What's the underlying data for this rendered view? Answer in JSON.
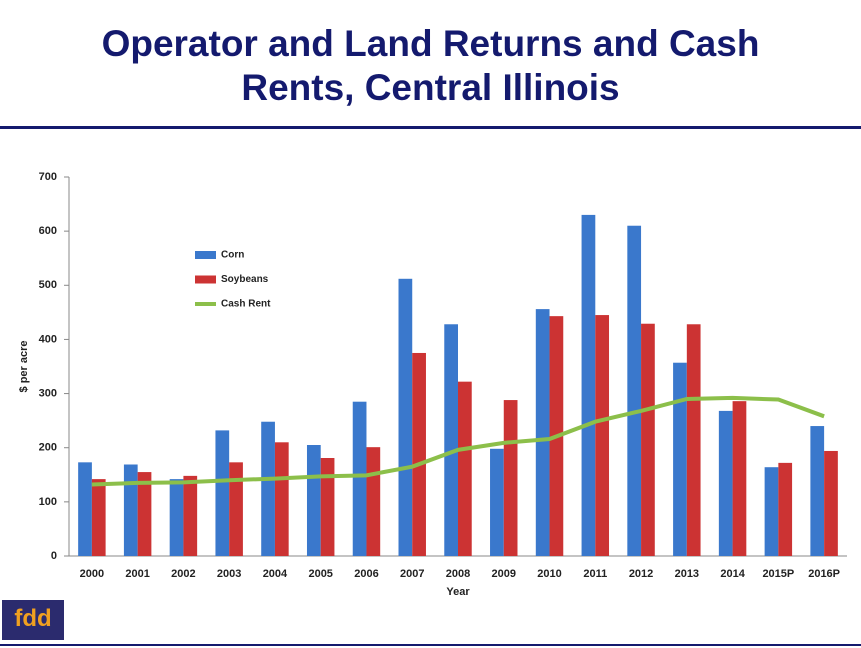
{
  "chart_data": {
    "type": "bar",
    "title": "Operator and Land Returns and Cash Rents, Central Illinois",
    "categories": [
      "2000",
      "2001",
      "2002",
      "2003",
      "2004",
      "2005",
      "2006",
      "2007",
      "2008",
      "2009",
      "2010",
      "2011",
      "2012",
      "2013",
      "2014",
      "2015P",
      "2016P"
    ],
    "series": [
      {
        "name": "Corn",
        "type": "bar",
        "color": "#3a78cc",
        "values": [
          173,
          169,
          142,
          232,
          248,
          205,
          285,
          512,
          428,
          198,
          456,
          630,
          610,
          357,
          268,
          164,
          240
        ]
      },
      {
        "name": "Soybeans",
        "type": "bar",
        "color": "#cc3333",
        "values": [
          142,
          155,
          148,
          173,
          210,
          181,
          201,
          375,
          322,
          288,
          443,
          445,
          429,
          428,
          286,
          172,
          194
        ]
      },
      {
        "name": "Cash Rent",
        "type": "line",
        "color": "#8cbf4a",
        "values": [
          132,
          135,
          136,
          140,
          143,
          147,
          149,
          165,
          196,
          209,
          216,
          248,
          268,
          290,
          292,
          289,
          258
        ]
      }
    ],
    "ylim": [
      0,
      700
    ],
    "yticks": [
      0,
      100,
      200,
      300,
      400,
      500,
      600,
      700
    ],
    "y_label": "$ per acre",
    "x_label": "Year",
    "grid": false
  },
  "footer": {
    "logo": "fdd"
  }
}
